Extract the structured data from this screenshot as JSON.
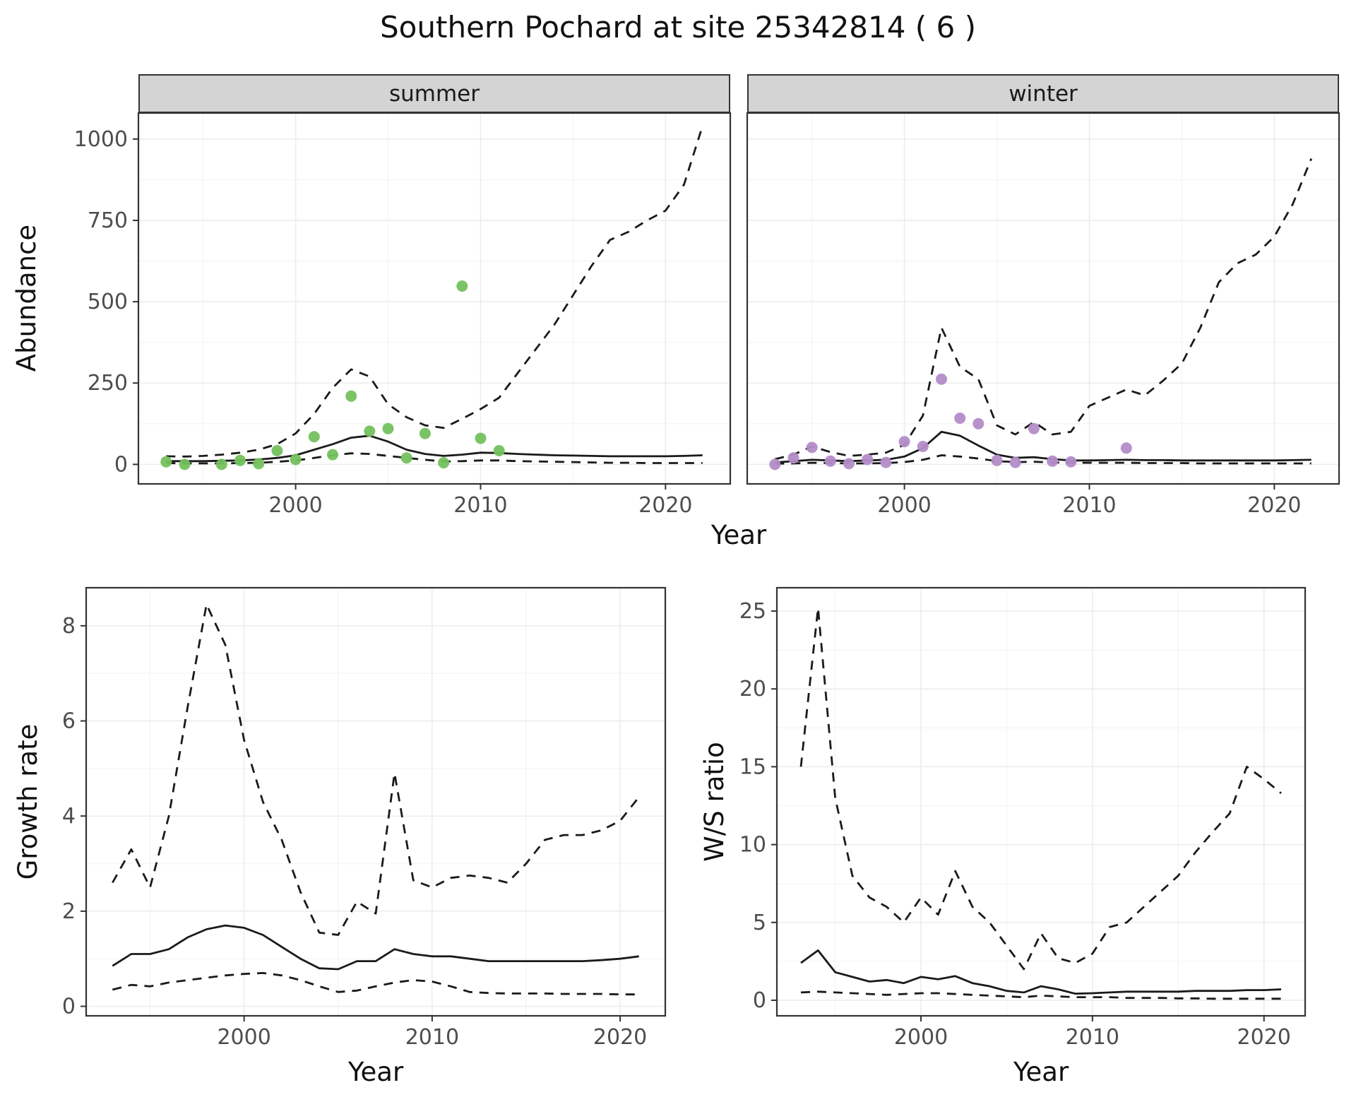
{
  "title": "Southern Pochard at site 25342814 ( 6 )",
  "labels": {
    "facet_summer": "summer",
    "facet_winter": "winter",
    "abundance_ylabel": "Abundance",
    "growth_ylabel": "Growth rate",
    "ws_ylabel": "W/S ratio",
    "xlabel_top": "Year",
    "xlabel_growth": "Year",
    "xlabel_ws": "Year"
  },
  "colors": {
    "line": "#1a1a1a",
    "panel_border": "#333333",
    "tick_mark": "#333333",
    "tick_label": "#4d4d4d",
    "grid_major": "#ececec",
    "grid_minor": "#f6f6f6",
    "strip_bg": "#d4d4d4",
    "summer_points": "#74c15e",
    "winter_points": "#b48cc8"
  },
  "chart_data": [
    {
      "id": "abundance-summer",
      "type": "line",
      "facet": "summer",
      "xlabel": "Year",
      "ylabel": "Abundance",
      "xlim": [
        1991.5,
        2023.5
      ],
      "ylim": [
        -60,
        1080
      ],
      "xticks": [
        2000,
        2010,
        2020
      ],
      "yticks": [
        0,
        250,
        500,
        750,
        1000
      ],
      "xminor": [
        1995,
        2005,
        2015
      ],
      "yminor": [
        125,
        375,
        625,
        875
      ],
      "x": [
        1993,
        1994,
        1995,
        1996,
        1997,
        1998,
        1999,
        2000,
        2001,
        2002,
        2003,
        2004,
        2005,
        2006,
        2007,
        2008,
        2009,
        2010,
        2011,
        2012,
        2013,
        2014,
        2015,
        2016,
        2017,
        2018,
        2019,
        2020,
        2021,
        2022
      ],
      "series": [
        {
          "name": "median",
          "style": "solid",
          "values": [
            10,
            10,
            10,
            11,
            12,
            15,
            20,
            28,
            45,
            62,
            82,
            88,
            70,
            45,
            32,
            26,
            30,
            36,
            35,
            32,
            30,
            28,
            27,
            26,
            25,
            25,
            25,
            25,
            26,
            28
          ]
        },
        {
          "name": "upper-ci",
          "style": "dashed",
          "values": [
            25,
            24,
            26,
            30,
            36,
            45,
            62,
            95,
            155,
            235,
            292,
            270,
            185,
            145,
            120,
            112,
            140,
            170,
            205,
            280,
            355,
            430,
            520,
            610,
            690,
            715,
            750,
            780,
            860,
            1040
          ]
        },
        {
          "name": "lower-ci",
          "style": "dashed",
          "values": [
            4,
            3,
            3,
            3,
            4,
            5,
            8,
            12,
            20,
            28,
            34,
            32,
            26,
            20,
            14,
            9,
            10,
            12,
            12,
            10,
            9,
            8,
            7,
            6,
            5,
            5,
            4,
            4,
            4,
            4
          ]
        },
        {
          "name": "observed-counts",
          "style": "points",
          "color": "#74c15e",
          "x": [
            1993,
            1994,
            1996,
            1997,
            1998,
            1999,
            2000,
            2001,
            2002,
            2003,
            2004,
            2005,
            2006,
            2007,
            2008,
            2009,
            2010,
            2011
          ],
          "values": [
            8,
            0,
            0,
            12,
            2,
            42,
            15,
            85,
            30,
            210,
            102,
            110,
            20,
            95,
            5,
            548,
            80,
            42
          ]
        }
      ]
    },
    {
      "id": "abundance-winter",
      "type": "line",
      "facet": "winter",
      "xlabel": "Year",
      "ylabel": "Abundance",
      "xlim": [
        1991.5,
        2023.5
      ],
      "ylim": [
        -60,
        1080
      ],
      "xticks": [
        2000,
        2010,
        2020
      ],
      "yticks": [
        0,
        250,
        500,
        750,
        1000
      ],
      "xminor": [
        1995,
        2005,
        2015
      ],
      "yminor": [
        125,
        375,
        625,
        875
      ],
      "x": [
        1993,
        1994,
        1995,
        1996,
        1997,
        1998,
        1999,
        2000,
        2001,
        2002,
        2003,
        2004,
        2005,
        2006,
        2007,
        2008,
        2009,
        2010,
        2011,
        2012,
        2013,
        2014,
        2015,
        2016,
        2017,
        2018,
        2019,
        2020,
        2021,
        2022
      ],
      "series": [
        {
          "name": "median",
          "style": "solid",
          "values": [
            6,
            10,
            14,
            12,
            10,
            12,
            14,
            24,
            50,
            100,
            88,
            58,
            30,
            20,
            22,
            16,
            12,
            12,
            13,
            14,
            13,
            13,
            12,
            12,
            12,
            12,
            12,
            12,
            13,
            14
          ]
        },
        {
          "name": "upper-ci",
          "style": "dashed",
          "values": [
            16,
            30,
            55,
            38,
            26,
            30,
            36,
            60,
            150,
            420,
            300,
            262,
            120,
            92,
            130,
            92,
            100,
            180,
            205,
            230,
            212,
            258,
            310,
            420,
            560,
            618,
            645,
            700,
            800,
            940
          ]
        },
        {
          "name": "lower-ci",
          "style": "dashed",
          "values": [
            2,
            3,
            5,
            4,
            3,
            3,
            4,
            7,
            14,
            28,
            24,
            18,
            10,
            7,
            8,
            6,
            5,
            5,
            5,
            5,
            4,
            4,
            4,
            3,
            3,
            3,
            3,
            3,
            3,
            3
          ]
        },
        {
          "name": "observed-counts",
          "style": "points",
          "color": "#b48cc8",
          "x": [
            1993,
            1994,
            1995,
            1996,
            1997,
            1998,
            1999,
            2000,
            2001,
            2002,
            2003,
            2004,
            2005,
            2006,
            2007,
            2008,
            2009,
            2012
          ],
          "values": [
            0,
            20,
            52,
            10,
            2,
            15,
            6,
            70,
            55,
            262,
            142,
            125,
            12,
            6,
            110,
            10,
            8,
            50
          ]
        }
      ]
    },
    {
      "id": "growth-rate",
      "type": "line",
      "xlabel": "Year",
      "ylabel": "Growth rate",
      "xlim": [
        1991.6,
        2022.4
      ],
      "ylim": [
        -0.2,
        8.8
      ],
      "xticks": [
        2000,
        2010,
        2020
      ],
      "yticks": [
        0,
        2,
        4,
        6,
        8
      ],
      "xminor": [
        1995,
        2005,
        2015
      ],
      "yminor": [
        1,
        3,
        5,
        7
      ],
      "x": [
        1993,
        1994,
        1995,
        1996,
        1997,
        1998,
        1999,
        2000,
        2001,
        2002,
        2003,
        2004,
        2005,
        2006,
        2007,
        2008,
        2009,
        2010,
        2011,
        2012,
        2013,
        2014,
        2015,
        2016,
        2017,
        2018,
        2019,
        2020,
        2021
      ],
      "series": [
        {
          "name": "median",
          "style": "solid",
          "values": [
            0.85,
            1.1,
            1.1,
            1.2,
            1.45,
            1.62,
            1.7,
            1.65,
            1.5,
            1.25,
            1.0,
            0.8,
            0.78,
            0.95,
            0.95,
            1.2,
            1.1,
            1.05,
            1.05,
            1.0,
            0.95,
            0.95,
            0.95,
            0.95,
            0.95,
            0.95,
            0.97,
            1.0,
            1.05
          ]
        },
        {
          "name": "upper-ci",
          "style": "dashed",
          "values": [
            2.6,
            3.3,
            2.5,
            4.0,
            6.3,
            8.45,
            7.6,
            5.6,
            4.3,
            3.5,
            2.4,
            1.55,
            1.5,
            2.2,
            1.95,
            4.9,
            2.65,
            2.5,
            2.7,
            2.75,
            2.7,
            2.6,
            3.0,
            3.5,
            3.6,
            3.6,
            3.7,
            3.9,
            4.4
          ]
        },
        {
          "name": "lower-ci",
          "style": "dashed",
          "values": [
            0.35,
            0.45,
            0.42,
            0.5,
            0.55,
            0.6,
            0.65,
            0.68,
            0.7,
            0.65,
            0.55,
            0.42,
            0.3,
            0.33,
            0.42,
            0.5,
            0.55,
            0.52,
            0.42,
            0.3,
            0.28,
            0.27,
            0.27,
            0.27,
            0.26,
            0.26,
            0.26,
            0.25,
            0.25
          ]
        }
      ]
    },
    {
      "id": "ws-ratio",
      "type": "line",
      "xlabel": "Year",
      "ylabel": "W/S ratio",
      "xlim": [
        1991.6,
        2022.4
      ],
      "ylim": [
        -1,
        26.5
      ],
      "xticks": [
        2000,
        2010,
        2020
      ],
      "yticks": [
        0,
        5,
        10,
        15,
        20,
        25
      ],
      "xminor": [
        1995,
        2005,
        2015
      ],
      "yminor": [
        2.5,
        7.5,
        12.5,
        17.5,
        22.5
      ],
      "x": [
        1993,
        1994,
        1995,
        1996,
        1997,
        1998,
        1999,
        2000,
        2001,
        2002,
        2003,
        2004,
        2005,
        2006,
        2007,
        2008,
        2009,
        2010,
        2011,
        2012,
        2013,
        2014,
        2015,
        2016,
        2017,
        2018,
        2019,
        2020,
        2021
      ],
      "series": [
        {
          "name": "median",
          "style": "solid",
          "values": [
            2.4,
            3.2,
            1.8,
            1.5,
            1.2,
            1.3,
            1.1,
            1.5,
            1.35,
            1.55,
            1.1,
            0.9,
            0.6,
            0.5,
            0.9,
            0.7,
            0.42,
            0.45,
            0.5,
            0.55,
            0.55,
            0.55,
            0.55,
            0.6,
            0.6,
            0.6,
            0.65,
            0.65,
            0.7
          ]
        },
        {
          "name": "upper-ci",
          "style": "dashed",
          "values": [
            15.0,
            25.2,
            13.0,
            8.0,
            6.6,
            6.0,
            5.0,
            6.6,
            5.5,
            8.3,
            6.0,
            5.0,
            3.5,
            2.0,
            4.3,
            2.7,
            2.4,
            3.0,
            4.7,
            5.0,
            6.0,
            7.0,
            8.0,
            9.5,
            10.8,
            12.0,
            15.0,
            14.2,
            13.3
          ]
        },
        {
          "name": "lower-ci",
          "style": "dashed",
          "values": [
            0.5,
            0.55,
            0.5,
            0.45,
            0.4,
            0.35,
            0.4,
            0.45,
            0.45,
            0.4,
            0.35,
            0.3,
            0.25,
            0.2,
            0.3,
            0.25,
            0.2,
            0.2,
            0.2,
            0.15,
            0.15,
            0.15,
            0.12,
            0.12,
            0.1,
            0.1,
            0.1,
            0.1,
            0.1
          ]
        }
      ]
    }
  ]
}
